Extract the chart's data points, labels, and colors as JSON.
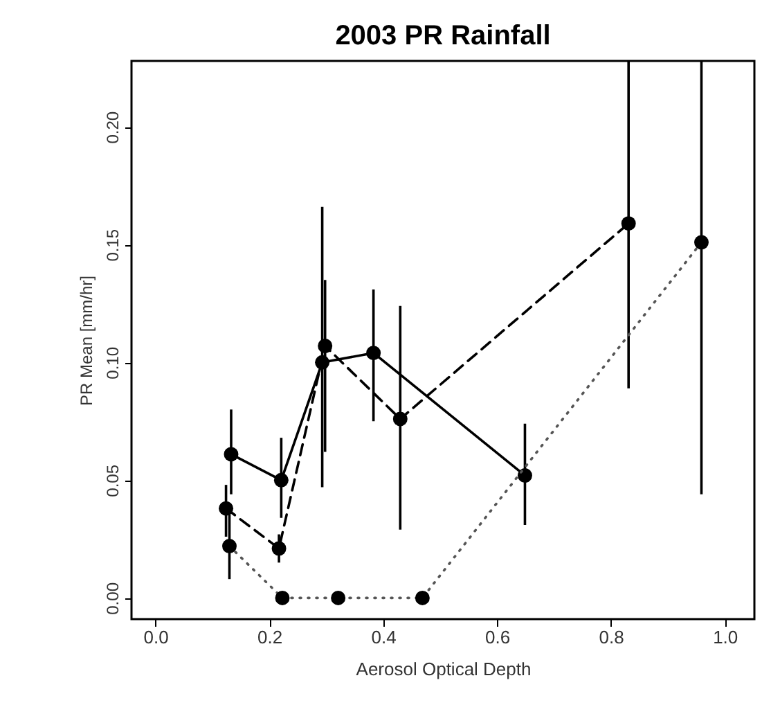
{
  "chart_data": {
    "type": "line",
    "title": "2003 PR Rainfall",
    "xlabel": "Aerosol Optical Depth",
    "ylabel": "PR Mean [mm/hr]",
    "xlim": [
      -0.042,
      1.052
    ],
    "ylim": [
      -0.009,
      0.228
    ],
    "xticks": [
      {
        "value": 0,
        "label": "0.0"
      },
      {
        "value": 0.2,
        "label": "0.2"
      },
      {
        "value": 0.4,
        "label": "0.4"
      },
      {
        "value": 0.6,
        "label": "0.6"
      },
      {
        "value": 0.8,
        "label": "0.8"
      },
      {
        "value": 1,
        "label": "1.0"
      }
    ],
    "yticks": [
      {
        "value": 0,
        "label": "0.00"
      },
      {
        "value": 0.05,
        "label": "0.05"
      },
      {
        "value": 0.1,
        "label": "0.10"
      },
      {
        "value": 0.15,
        "label": "0.15"
      },
      {
        "value": 0.2,
        "label": "0.20"
      }
    ],
    "grid": false,
    "marker": "circle",
    "series": [
      {
        "color": "#000000",
        "line_style": "solid",
        "x": [
          0.133,
          0.221,
          0.293,
          0.383,
          0.649
        ],
        "values": [
          0.061,
          0.05,
          0.1,
          0.104,
          0.052
        ],
        "errors": [
          [
            0.044,
            0.08
          ],
          [
            0.034,
            0.068
          ],
          [
            0.047,
            0.166
          ],
          [
            0.075,
            0.131
          ],
          [
            0.031,
            0.074
          ]
        ]
      },
      {
        "color": "#000000",
        "line_style": "dashed",
        "x": [
          0.124,
          0.217,
          0.298,
          0.43,
          0.831
        ],
        "values": [
          0.038,
          0.021,
          0.107,
          0.076,
          0.159
        ],
        "errors": [
          [
            0.026,
            0.048
          ],
          [
            0.015,
            0.027
          ],
          [
            0.062,
            0.135
          ],
          [
            0.029,
            0.124
          ],
          [
            0.089,
            0.228
          ]
        ]
      },
      {
        "color": "#555555",
        "line_style": "dotted",
        "x": [
          0.13,
          0.223,
          0.321,
          0.469,
          0.959
        ],
        "values": [
          0.022,
          0.0,
          0.0,
          0.0,
          0.151
        ],
        "errors": [
          [
            0.008,
            0.04
          ],
          null,
          null,
          null,
          [
            0.044,
            0.228
          ]
        ]
      }
    ]
  }
}
